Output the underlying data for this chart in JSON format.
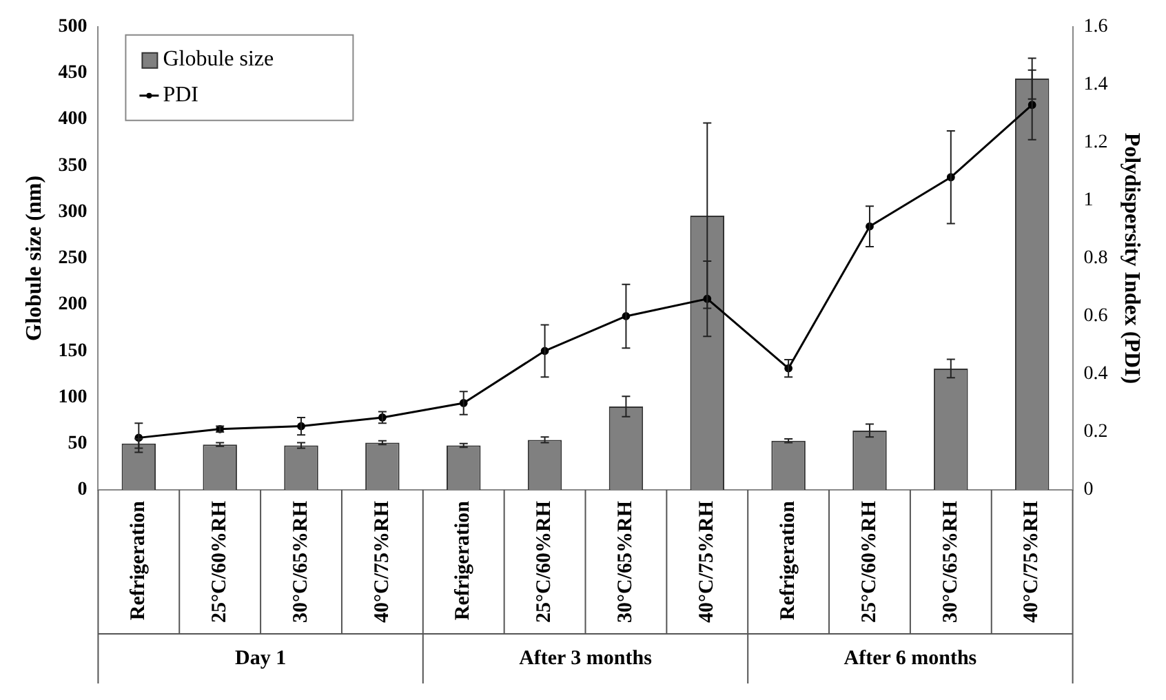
{
  "chart_data": {
    "type": "bar",
    "categories": [
      "Refrigeration",
      "25°C/60%RH",
      "30°C/65%RH",
      "40°C/75%RH",
      "Refrigeration",
      "25°C/60%RH",
      "30°C/65%RH",
      "40°C/75%RH",
      "Refrigeration",
      "25°C/60%RH",
      "30°C/65%RH",
      "40°C/75%RH"
    ],
    "series": [
      {
        "name": "Globule size",
        "color": "#808080",
        "values": [
          50,
          49,
          48,
          51,
          48,
          54,
          90,
          296,
          53,
          64,
          131,
          444
        ],
        "errors": [
          5,
          2,
          3,
          2,
          2,
          3,
          11,
          100,
          2,
          7,
          10,
          22
        ]
      },
      {
        "name": "PDI",
        "type": "line",
        "axis": "y2",
        "color": "#000000",
        "values": [
          0.18,
          0.21,
          0.22,
          0.25,
          0.3,
          0.48,
          0.6,
          0.66,
          0.42,
          0.91,
          1.08,
          1.33
        ],
        "errors": [
          0.05,
          0.01,
          0.03,
          0.02,
          0.04,
          0.09,
          0.11,
          0.13,
          0.03,
          0.07,
          0.16,
          0.12
        ]
      }
    ],
    "ylabel": "Globule size (nm)",
    "y2label": "Polydispersity Index (PDI)",
    "ylim": [
      0,
      500
    ],
    "yticks": [
      0,
      50,
      100,
      150,
      200,
      250,
      300,
      350,
      400,
      450,
      500
    ],
    "y2lim": [
      0,
      1.6
    ],
    "y2ticks": [
      0,
      0.2,
      0.4,
      0.6,
      0.8,
      1,
      1.2,
      1.4,
      1.6
    ],
    "annotations": [
      "Day 1",
      "After 3 months",
      "After 6 months"
    ],
    "legend": "top left",
    "marker": "circle",
    "grid": false
  }
}
